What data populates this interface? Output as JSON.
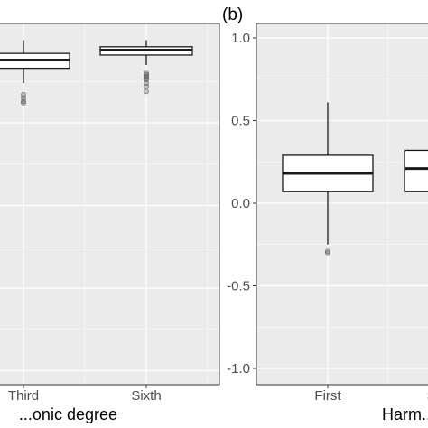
{
  "chart_data": [
    {
      "type": "box",
      "xlabel": "...onic degree",
      "ylabel": "",
      "categories": [
        "Third",
        "Sixth"
      ],
      "ylim": [
        -1.05,
        1.1
      ],
      "grid": true,
      "boxes": [
        {
          "category": "Third",
          "whisker_high": 1.0,
          "q3": 0.92,
          "median": 0.88,
          "q1": 0.83,
          "whisker_low": 0.74,
          "outliers": [
            0.67,
            0.65,
            0.63,
            0.62
          ]
        },
        {
          "category": "Sixth",
          "whisker_high": 1.0,
          "q3": 0.96,
          "median": 0.94,
          "q1": 0.91,
          "whisker_low": 0.85,
          "outliers": [
            0.8,
            0.79,
            0.78,
            0.77,
            0.76,
            0.74,
            0.72,
            0.69
          ]
        }
      ]
    },
    {
      "type": "box",
      "panel_label": "(b)",
      "xlabel": "Harm...",
      "ylabel": "",
      "categories": [
        "First",
        "Second"
      ],
      "yticks": [
        "1.0",
        "0.5",
        "0.0",
        "-0.5",
        "-1.0"
      ],
      "ylim": [
        -1.1,
        1.05
      ],
      "grid": true,
      "boxes": [
        {
          "category": "First",
          "whisker_high": 0.61,
          "q3": 0.29,
          "median": 0.18,
          "q1": 0.07,
          "whisker_low": -0.25,
          "outliers": [
            -0.3,
            -0.29
          ]
        },
        {
          "category": "Second",
          "whisker_high": 0.32,
          "q3": 0.32,
          "median": 0.21,
          "q1": 0.07,
          "whisker_low": 0.07,
          "outliers": []
        }
      ]
    }
  ]
}
